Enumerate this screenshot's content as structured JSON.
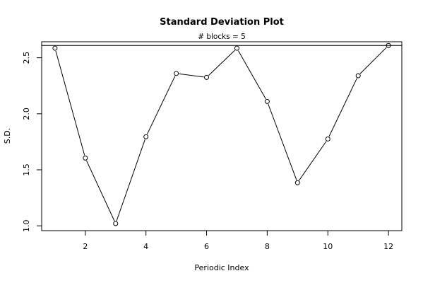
{
  "chart_data": {
    "type": "line",
    "title": "Standard Deviation Plot",
    "subtitle": "# blocks =  5",
    "xlabel": "Periodic Index",
    "ylabel": "S.D.",
    "x": [
      1,
      2,
      3,
      4,
      5,
      6,
      7,
      8,
      9,
      10,
      11,
      12
    ],
    "y": [
      2.585,
      1.605,
      1.02,
      1.795,
      2.36,
      2.325,
      2.585,
      2.11,
      1.385,
      1.775,
      2.34,
      2.61
    ],
    "xlim": [
      0.56,
      12.44
    ],
    "ylim": [
      0.957,
      2.643
    ],
    "xticks": [
      2,
      4,
      6,
      8,
      10,
      12
    ],
    "yticks": [
      1.0,
      1.5,
      2.0,
      2.5
    ],
    "ytick_labels": [
      "1.0",
      "1.5",
      "2.0",
      "2.5"
    ],
    "reference_line": 2.61,
    "marker": "open-circle",
    "grid": false,
    "colors": {
      "line": "#000000",
      "background": "#ffffff"
    }
  }
}
